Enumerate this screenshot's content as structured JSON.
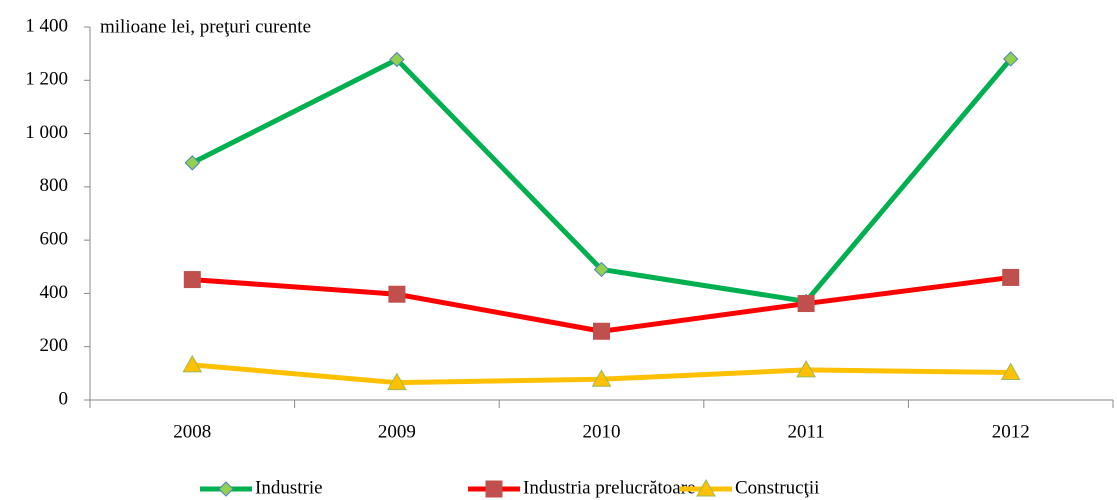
{
  "chart_data": {
    "type": "line",
    "annotation": "milioane lei, preţuri curente",
    "categories": [
      "2008",
      "2009",
      "2010",
      "2011",
      "2012"
    ],
    "series": [
      {
        "name": "Industrie",
        "color": "#00b050",
        "marker": "diamond",
        "marker_color": "#92d050",
        "values": [
          890,
          1278,
          490,
          370,
          1280
        ]
      },
      {
        "name": "Industria prelucrătoare",
        "color": "#ff0000",
        "marker": "square",
        "marker_color": "#c0504d",
        "values": [
          452,
          397,
          258,
          362,
          460
        ]
      },
      {
        "name": "Construcţii",
        "color": "#ffc000",
        "marker": "triangle",
        "marker_color": "#ffc000",
        "values": [
          132,
          65,
          78,
          113,
          103
        ]
      }
    ],
    "ylim": [
      0,
      1400
    ],
    "yticks": [
      0,
      200,
      400,
      600,
      800,
      {
        "value": 1000,
        "label": "1 000"
      },
      {
        "value": 1200,
        "label": "1 200"
      },
      {
        "value": 1400,
        "label": "1 400"
      }
    ],
    "legend": "bottom"
  }
}
